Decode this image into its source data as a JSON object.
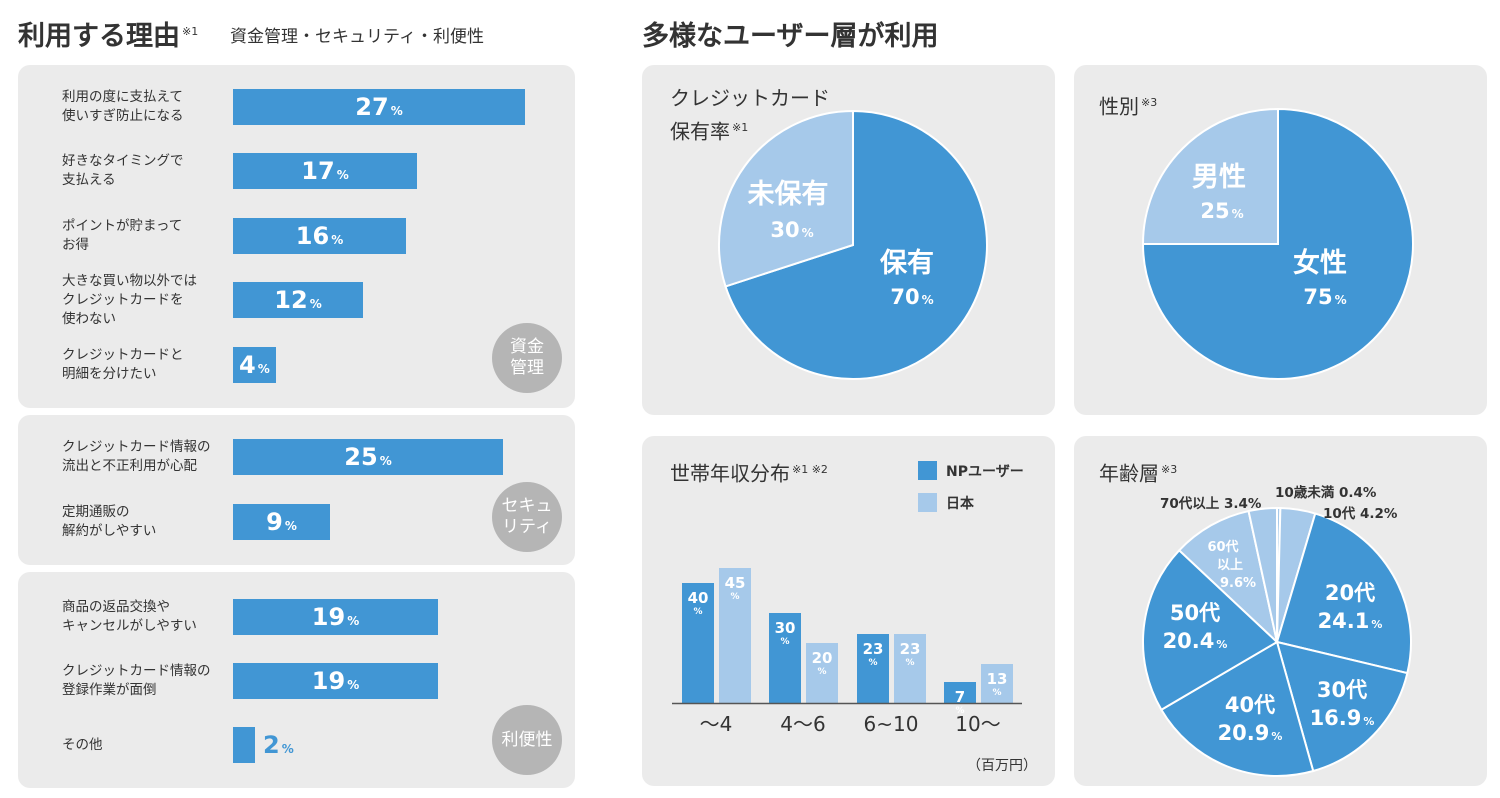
{
  "left": {
    "title": "利用する理由",
    "title_note": "※1",
    "subtitle": "資金管理・セキュリティ・利便性",
    "groups": [
      {
        "badge": "資金\n管理",
        "items": [
          {
            "label": "利用の度に支払えて\n使いすぎ防止になる",
            "value": 27
          },
          {
            "label": "好きなタイミングで\n支払える",
            "value": 17
          },
          {
            "label": "ポイントが貯まって\nお得",
            "value": 16
          },
          {
            "label": "大きな買い物以外では\nクレジットカードを\n使わない",
            "value": 12
          },
          {
            "label": "クレジットカードと\n明細を分けたい",
            "value": 4
          }
        ]
      },
      {
        "badge": "セキュ\nリティ",
        "items": [
          {
            "label": "クレジットカード情報の\n流出と不正利用が心配",
            "value": 25
          },
          {
            "label": "定期通販の\n解約がしやすい",
            "value": 9
          }
        ]
      },
      {
        "badge": "利便性",
        "items": [
          {
            "label": "商品の返品交換や\nキャンセルがしやすい",
            "value": 19
          },
          {
            "label": "クレジットカード情報の\n登録作業が面倒",
            "value": 19
          },
          {
            "label": "その他",
            "value": 2
          }
        ]
      }
    ],
    "pct_unit": "%"
  },
  "right": {
    "title": "多様なユーザー層が利用",
    "card_title": "クレジットカード\n保有率",
    "card_note": "※1",
    "gender_title": "性別",
    "gender_note": "※3",
    "income_title": "世帯年収分布",
    "income_note": "※1 ※2",
    "age_title": "年齢層",
    "age_note": "※3",
    "income_unit": "（百万円）"
  },
  "colors": {
    "dark": "#4196d4",
    "light": "#a6c9ea",
    "badge": "#b5b5b5",
    "panel": "#ebebeb"
  },
  "chart_data": [
    {
      "type": "bar",
      "orientation": "horizontal",
      "title": "利用する理由",
      "categories": [
        "利用の度に支払えて使いすぎ防止になる",
        "好きなタイミングで支払える",
        "ポイントが貯まってお得",
        "大きな買い物以外ではクレジットカードを使わない",
        "クレジットカードと明細を分けたい",
        "クレジットカード情報の流出と不正利用が心配",
        "定期通販の解約がしやすい",
        "商品の返品交換やキャンセルがしやすい",
        "クレジットカード情報の登録作業が面倒",
        "その他"
      ],
      "values": [
        27,
        17,
        16,
        12,
        4,
        25,
        9,
        19,
        19,
        2
      ],
      "unit": "%"
    },
    {
      "type": "pie",
      "title": "クレジットカード保有率",
      "slices": [
        {
          "label": "保有",
          "value": 70
        },
        {
          "label": "未保有",
          "value": 30
        }
      ],
      "unit": "%"
    },
    {
      "type": "pie",
      "title": "性別",
      "slices": [
        {
          "label": "女性",
          "value": 75
        },
        {
          "label": "男性",
          "value": 25
        }
      ],
      "unit": "%"
    },
    {
      "type": "bar",
      "title": "世帯年収分布",
      "categories": [
        "～4",
        "4～6",
        "6~10",
        "10～"
      ],
      "series": [
        {
          "name": "NPユーザー",
          "values": [
            40,
            30,
            23,
            7
          ]
        },
        {
          "name": "日本",
          "values": [
            45,
            20,
            23,
            13
          ]
        }
      ],
      "unit": "%",
      "xunit": "（百万円）"
    },
    {
      "type": "pie",
      "title": "年齢層",
      "slices": [
        {
          "label": "10歳未満",
          "value": 0.4
        },
        {
          "label": "10代",
          "value": 4.2
        },
        {
          "label": "20代",
          "value": 24.1
        },
        {
          "label": "30代",
          "value": 16.9
        },
        {
          "label": "40代",
          "value": 20.9
        },
        {
          "label": "50代",
          "value": 20.4
        },
        {
          "label": "60代以上",
          "value": 9.6
        },
        {
          "label": "70代以上",
          "value": 3.4
        }
      ],
      "unit": "%"
    }
  ]
}
